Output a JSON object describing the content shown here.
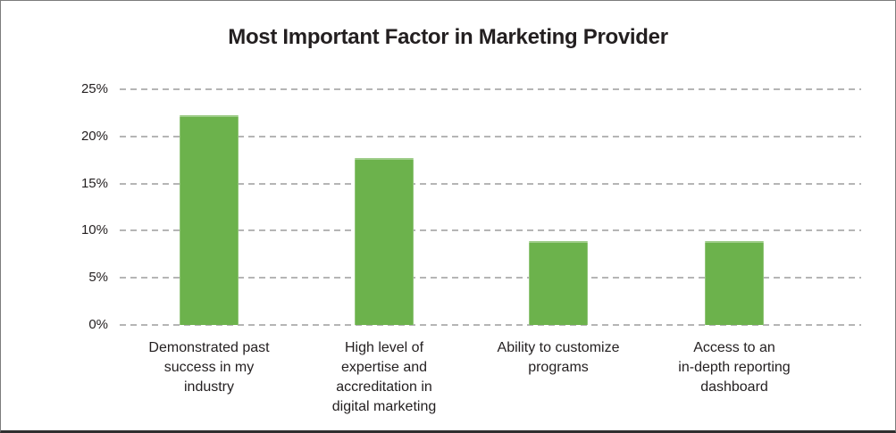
{
  "frame": {
    "background": "#ffffff",
    "border_color": "#7c7c7c",
    "border_bottom_color": "#2f2f2f"
  },
  "chart_data": {
    "type": "bar",
    "title": "Most Important Factor in Marketing Provider",
    "categories": [
      "Demonstrated past\nsuccess in my\nindustry",
      "High level of\nexpertise and\naccreditation in\ndigital marketing",
      "Ability to customize\nprograms",
      "Access to an\nin-depth reporting\ndashboard"
    ],
    "values": [
      22.3,
      17.7,
      8.9,
      8.9
    ],
    "unit": "%",
    "xlabel": "",
    "ylabel": "",
    "ylim": [
      0,
      25
    ],
    "yticks": [
      {
        "value": 0,
        "label": "0%"
      },
      {
        "value": 5,
        "label": "5%"
      },
      {
        "value": 10,
        "label": "10%"
      },
      {
        "value": 15,
        "label": "15%"
      },
      {
        "value": 20,
        "label": "20%"
      },
      {
        "value": 25,
        "label": "25%"
      }
    ],
    "grid": "horizontal-dashed",
    "legend": "none",
    "bar_color": "#6cb24c",
    "gridline_color": "#b5b5b5",
    "title_color": "#231f20",
    "tick_label_color": "#231f20"
  }
}
